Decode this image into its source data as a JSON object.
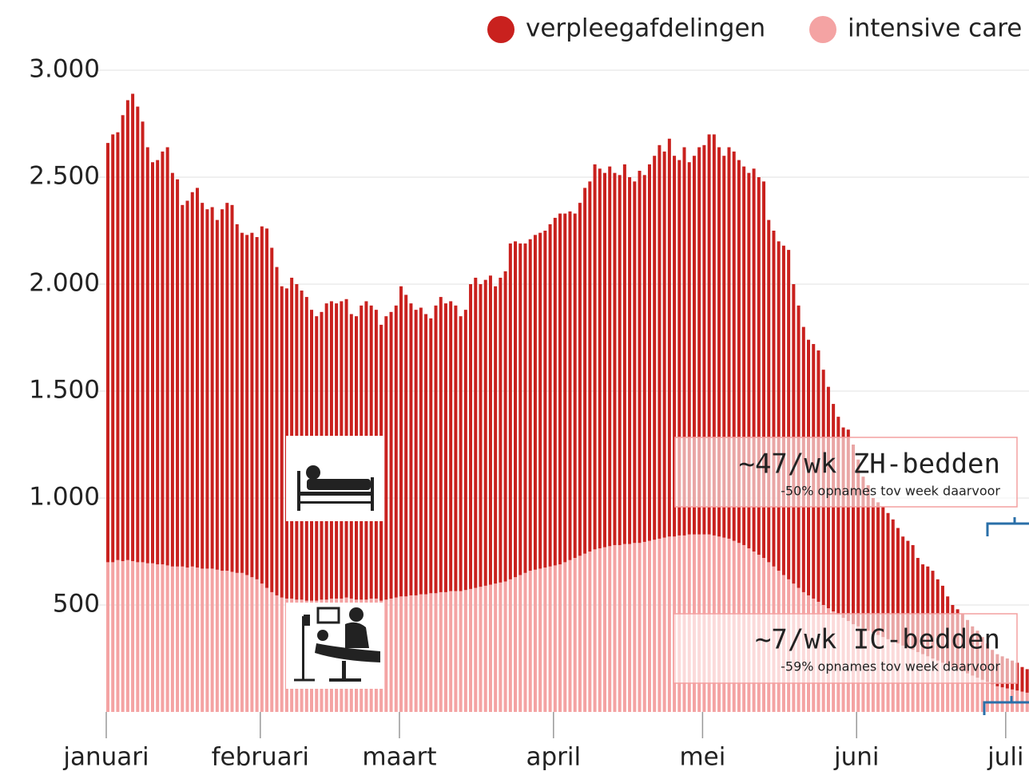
{
  "chart_data": {
    "type": "stacked-bar",
    "categories": [
      "januari",
      null,
      null,
      null,
      null,
      null,
      null,
      null,
      null,
      null,
      null,
      null,
      null,
      null,
      null,
      null,
      null,
      null,
      null,
      null,
      null,
      null,
      null,
      null,
      null,
      null,
      null,
      null,
      null,
      null,
      null,
      "februari",
      null,
      null,
      null,
      null,
      null,
      null,
      null,
      null,
      null,
      null,
      null,
      null,
      null,
      null,
      null,
      null,
      null,
      null,
      null,
      null,
      null,
      null,
      null,
      null,
      null,
      null,
      null,
      "maart",
      null,
      null,
      null,
      null,
      null,
      null,
      null,
      null,
      null,
      null,
      null,
      null,
      null,
      null,
      null,
      null,
      null,
      null,
      null,
      null,
      null,
      null,
      null,
      null,
      null,
      null,
      null,
      null,
      null,
      null,
      "april",
      null,
      null,
      null,
      null,
      null,
      null,
      null,
      null,
      null,
      null,
      null,
      null,
      null,
      null,
      null,
      null,
      null,
      null,
      null,
      null,
      null,
      null,
      null,
      null,
      null,
      null,
      null,
      null,
      null,
      "mei",
      null,
      null,
      null,
      null,
      null,
      null,
      null,
      null,
      null,
      null,
      null,
      null,
      null,
      null,
      null,
      null,
      null,
      null,
      null,
      null,
      null,
      null,
      null,
      null,
      null,
      null,
      null,
      null,
      null,
      null,
      "juni",
      null,
      null,
      null,
      null,
      null,
      null,
      null,
      null,
      null,
      null,
      null,
      null,
      null,
      null,
      null,
      null,
      null,
      null,
      null,
      null,
      null,
      null,
      null,
      null,
      null,
      null,
      null,
      null,
      null,
      "juli",
      null,
      null,
      null,
      null
    ],
    "series": [
      {
        "name": "verpleegafdelingen",
        "color": "#c9211e",
        "values": [
          1960,
          2000,
          2000,
          2085,
          2150,
          2185,
          2130,
          2060,
          1945,
          1875,
          1890,
          1930,
          1955,
          1840,
          1810,
          1690,
          1715,
          1750,
          1775,
          1710,
          1680,
          1690,
          1635,
          1690,
          1720,
          1715,
          1630,
          1590,
          1590,
          1610,
          1600,
          1670,
          1680,
          1610,
          1535,
          1455,
          1450,
          1500,
          1475,
          1445,
          1420,
          1360,
          1330,
          1345,
          1385,
          1390,
          1380,
          1390,
          1395,
          1330,
          1325,
          1375,
          1395,
          1370,
          1350,
          1290,
          1325,
          1340,
          1365,
          1450,
          1410,
          1365,
          1335,
          1340,
          1310,
          1285,
          1345,
          1380,
          1350,
          1355,
          1335,
          1285,
          1310,
          1425,
          1450,
          1415,
          1430,
          1445,
          1390,
          1425,
          1450,
          1570,
          1570,
          1550,
          1540,
          1550,
          1565,
          1570,
          1575,
          1600,
          1625,
          1640,
          1630,
          1630,
          1610,
          1650,
          1710,
          1730,
          1800,
          1775,
          1750,
          1775,
          1740,
          1730,
          1775,
          1715,
          1690,
          1740,
          1715,
          1760,
          1795,
          1840,
          1805,
          1860,
          1780,
          1755,
          1815,
          1740,
          1770,
          1810,
          1820,
          1870,
          1875,
          1820,
          1785,
          1830,
          1820,
          1790,
          1770,
          1755,
          1790,
          1765,
          1760,
          1600,
          1570,
          1540,
          1540,
          1540,
          1400,
          1320,
          1240,
          1195,
          1190,
          1175,
          1100,
          1035,
          970,
          925,
          890,
          895,
          840,
          780,
          710,
          680,
          630,
          620,
          610,
          590,
          570,
          540,
          510,
          500,
          490,
          440,
          420,
          420,
          410,
          380,
          360,
          320,
          290,
          280,
          270,
          250,
          230,
          220,
          200,
          180,
          160,
          150,
          145,
          140,
          135,
          130,
          115,
          110
        ]
      },
      {
        "name": "intensive care",
        "color": "#f4a3a3",
        "values": [
          700,
          700,
          710,
          705,
          710,
          705,
          700,
          700,
          695,
          695,
          690,
          690,
          685,
          680,
          680,
          680,
          675,
          680,
          675,
          670,
          670,
          670,
          665,
          660,
          660,
          655,
          650,
          650,
          640,
          630,
          620,
          600,
          580,
          560,
          545,
          535,
          530,
          530,
          525,
          525,
          520,
          520,
          520,
          525,
          525,
          530,
          530,
          530,
          535,
          530,
          525,
          525,
          525,
          530,
          530,
          520,
          525,
          530,
          535,
          540,
          540,
          545,
          545,
          550,
          550,
          555,
          555,
          560,
          560,
          565,
          565,
          565,
          570,
          575,
          580,
          585,
          590,
          595,
          600,
          605,
          610,
          620,
          630,
          640,
          650,
          660,
          665,
          670,
          675,
          680,
          685,
          690,
          700,
          710,
          720,
          730,
          740,
          750,
          760,
          765,
          770,
          775,
          780,
          780,
          785,
          785,
          790,
          790,
          795,
          800,
          805,
          810,
          815,
          820,
          820,
          825,
          825,
          830,
          830,
          830,
          830,
          830,
          825,
          820,
          815,
          810,
          800,
          790,
          780,
          765,
          750,
          735,
          720,
          700,
          680,
          660,
          640,
          620,
          600,
          580,
          560,
          545,
          530,
          515,
          500,
          485,
          470,
          455,
          440,
          425,
          410,
          400,
          390,
          380,
          370,
          360,
          350,
          340,
          330,
          320,
          310,
          300,
          290,
          280,
          270,
          260,
          250,
          240,
          230,
          220,
          210,
          200,
          190,
          180,
          170,
          160,
          150,
          140,
          130,
          120,
          115,
          110,
          105,
          100,
          95,
          90
        ]
      }
    ],
    "ylim": [
      0,
      3000
    ],
    "yticks": [
      500,
      {
        "value": 1000,
        "label": "1.000"
      },
      {
        "value": 1500,
        "label": "1.500"
      },
      {
        "value": 2000,
        "label": "2.000"
      },
      {
        "value": 2500,
        "label": "2.500"
      },
      {
        "value": 3000,
        "label": "3.000"
      }
    ],
    "grid": true,
    "annotations": [
      {
        "title": "~47/wk ZH-bedden",
        "note": "-50% opnames tov week daarvoor"
      },
      {
        "title": "~7/wk IC-bedden",
        "note": "-59% opnames tov week daarvoor"
      }
    ]
  }
}
